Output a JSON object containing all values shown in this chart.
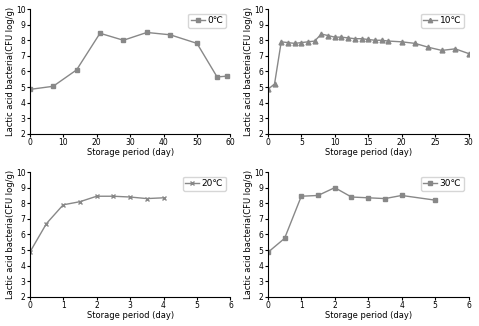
{
  "subplots": [
    {
      "label": "0℃",
      "x": [
        0,
        7,
        14,
        21,
        28,
        35,
        42,
        50,
        56,
        59
      ],
      "y": [
        4.85,
        5.05,
        6.1,
        8.45,
        8.0,
        8.5,
        8.35,
        7.8,
        5.65,
        5.7
      ],
      "xlim": [
        0,
        60
      ],
      "xticks": [
        0,
        10,
        20,
        30,
        40,
        50,
        60
      ],
      "marker": "s"
    },
    {
      "label": "10℃",
      "x": [
        0,
        1,
        2,
        3,
        4,
        5,
        6,
        7,
        8,
        9,
        10,
        11,
        12,
        13,
        14,
        15,
        16,
        17,
        18,
        20,
        22,
        24,
        26,
        28,
        30
      ],
      "y": [
        4.85,
        5.2,
        7.9,
        7.85,
        7.8,
        7.85,
        7.9,
        7.95,
        8.4,
        8.3,
        8.2,
        8.2,
        8.15,
        8.1,
        8.1,
        8.05,
        8.0,
        8.0,
        7.95,
        7.9,
        7.8,
        7.55,
        7.35,
        7.45,
        7.15
      ],
      "xlim": [
        0,
        30
      ],
      "xticks": [
        0,
        5,
        10,
        15,
        20,
        25,
        30
      ],
      "marker": "^"
    },
    {
      "label": "20℃",
      "x": [
        0,
        0.5,
        1.0,
        1.5,
        2.0,
        2.5,
        3.0,
        3.5,
        4.0
      ],
      "y": [
        4.85,
        6.7,
        7.9,
        8.1,
        8.45,
        8.45,
        8.4,
        8.3,
        8.35
      ],
      "xlim": [
        0,
        6
      ],
      "xticks": [
        0,
        1,
        2,
        3,
        4,
        5,
        6
      ],
      "marker": "x"
    },
    {
      "label": "30℃",
      "x": [
        0,
        0.5,
        1.0,
        1.5,
        2.0,
        2.5,
        3.0,
        3.5,
        4.0,
        5.0
      ],
      "y": [
        4.85,
        5.75,
        8.45,
        8.5,
        9.0,
        8.4,
        8.35,
        8.3,
        8.5,
        8.2
      ],
      "xlim": [
        0,
        6
      ],
      "xticks": [
        0,
        1,
        2,
        3,
        4,
        5,
        6
      ],
      "marker": "s"
    }
  ],
  "ylim": [
    2,
    10
  ],
  "yticks": [
    2,
    3,
    4,
    5,
    6,
    7,
    8,
    9,
    10
  ],
  "xlabel": "Storage period (day)",
  "ylabel": "Lactic acid bacteria(CFU log/g)",
  "line_color": "#888888",
  "marker_color": "#888888",
  "markersize": 3.5,
  "linewidth": 1.0,
  "fontsize_label": 6,
  "fontsize_tick": 5.5,
  "fontsize_legend": 6.5
}
